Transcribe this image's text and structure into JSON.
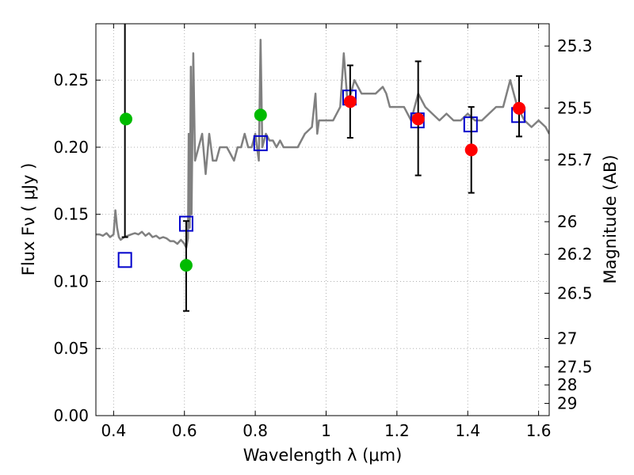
{
  "chart_data": {
    "type": "scatter",
    "xlabel": "Wavelength  λ (μm)",
    "ylabel": "Flux  Fν  ( μJy )",
    "ylabel_right": "Magnitude (AB)",
    "xlim": [
      0.35,
      1.63
    ],
    "ylim": [
      0.0,
      0.292
    ],
    "grid": true,
    "xticks": [
      0.4,
      0.6,
      0.8,
      1.0,
      1.2,
      1.4,
      1.6
    ],
    "xtick_labels": [
      "0.4",
      "0.6",
      "0.8",
      "1",
      "1.2",
      "1.4",
      "1.6"
    ],
    "yticks": [
      0.0,
      0.05,
      0.1,
      0.15,
      0.2,
      0.25
    ],
    "ytick_labels": [
      "0.00",
      "0.05",
      "0.10",
      "0.15",
      "0.20",
      "0.25"
    ],
    "right_ticks": [
      {
        "label": "25.3",
        "flux": 0.2754
      },
      {
        "label": "25.5",
        "flux": 0.2291
      },
      {
        "label": "25.7",
        "flux": 0.1905
      },
      {
        "label": "26",
        "flux": 0.1445
      },
      {
        "label": "26.2",
        "flux": 0.1202
      },
      {
        "label": "26.5",
        "flux": 0.0912
      },
      {
        "label": "27",
        "flux": 0.0575
      },
      {
        "label": "27.5",
        "flux": 0.0363
      },
      {
        "label": "28",
        "flux": 0.0229
      },
      {
        "label": "29",
        "flux": 0.0091
      }
    ],
    "colors": {
      "spectrum": "#808080",
      "green_points": "#00bb00",
      "red_points": "#ff0000",
      "model_squares": "#0000cc",
      "errorbars": "#000000",
      "grid": "#b0b0b0"
    },
    "series": [
      {
        "x": [
          0.35,
          0.36,
          0.37,
          0.38,
          0.39,
          0.4,
          0.405,
          0.41,
          0.415,
          0.42,
          0.43,
          0.44,
          0.45,
          0.46,
          0.47,
          0.48,
          0.49,
          0.5,
          0.51,
          0.52,
          0.53,
          0.54,
          0.55,
          0.56,
          0.57,
          0.58,
          0.59,
          0.6,
          0.605,
          0.61,
          0.612,
          0.615,
          0.618,
          0.62,
          0.625,
          0.63,
          0.64,
          0.65,
          0.66,
          0.67,
          0.68,
          0.69,
          0.7,
          0.71,
          0.72,
          0.73,
          0.74,
          0.75,
          0.76,
          0.77,
          0.78,
          0.79,
          0.8,
          0.81,
          0.815,
          0.82,
          0.83,
          0.84,
          0.85,
          0.86,
          0.87,
          0.88,
          0.9,
          0.92,
          0.94,
          0.96,
          0.97,
          0.975,
          0.98,
          1.0,
          1.02,
          1.04,
          1.05,
          1.06,
          1.07,
          1.08,
          1.09,
          1.1,
          1.12,
          1.14,
          1.16,
          1.17,
          1.18,
          1.2,
          1.22,
          1.24,
          1.26,
          1.28,
          1.3,
          1.32,
          1.34,
          1.36,
          1.38,
          1.4,
          1.42,
          1.44,
          1.46,
          1.48,
          1.5,
          1.52,
          1.54,
          1.56,
          1.58,
          1.6,
          1.62,
          1.63
        ],
        "y": [
          0.135,
          0.135,
          0.134,
          0.136,
          0.133,
          0.135,
          0.153,
          0.14,
          0.133,
          0.131,
          0.133,
          0.134,
          0.135,
          0.136,
          0.135,
          0.137,
          0.134,
          0.136,
          0.133,
          0.134,
          0.132,
          0.133,
          0.132,
          0.13,
          0.13,
          0.128,
          0.131,
          0.128,
          0.125,
          0.132,
          0.21,
          0.14,
          0.26,
          0.15,
          0.27,
          0.19,
          0.2,
          0.21,
          0.18,
          0.21,
          0.19,
          0.19,
          0.2,
          0.2,
          0.2,
          0.195,
          0.19,
          0.2,
          0.2,
          0.21,
          0.2,
          0.2,
          0.21,
          0.19,
          0.28,
          0.2,
          0.21,
          0.205,
          0.205,
          0.2,
          0.205,
          0.2,
          0.2,
          0.2,
          0.21,
          0.215,
          0.24,
          0.21,
          0.22,
          0.22,
          0.22,
          0.23,
          0.27,
          0.235,
          0.24,
          0.25,
          0.245,
          0.24,
          0.24,
          0.24,
          0.245,
          0.24,
          0.23,
          0.23,
          0.23,
          0.22,
          0.24,
          0.23,
          0.225,
          0.22,
          0.225,
          0.22,
          0.22,
          0.225,
          0.22,
          0.22,
          0.225,
          0.23,
          0.23,
          0.25,
          0.23,
          0.22,
          0.215,
          0.22,
          0.215,
          0.21
        ]
      },
      {
        "x": [
          0.435,
          0.605,
          0.815
        ],
        "y": [
          0.221,
          0.112,
          0.224
        ],
        "err_low": [
          null,
          0.034,
          null
        ],
        "err_high": [
          null,
          0.033,
          null
        ]
      },
      {
        "x": [
          1.068,
          1.26,
          1.41,
          1.545
        ],
        "y": [
          0.234,
          0.221,
          0.198,
          0.229
        ],
        "err_low": [
          0.027,
          0.042,
          0.032,
          0.021
        ],
        "err_high": [
          0.027,
          0.043,
          0.032,
          0.024
        ]
      },
      {
        "x": [
          0.432,
          0.605,
          0.815,
          1.066,
          1.258,
          1.408,
          1.543
        ],
        "y": [
          0.116,
          0.143,
          0.203,
          0.237,
          0.22,
          0.217,
          0.224
        ]
      },
      {
        "x": [
          0.432
        ],
        "y_low": [
          0.133
        ],
        "y_high": [
          0.292
        ]
      }
    ]
  }
}
